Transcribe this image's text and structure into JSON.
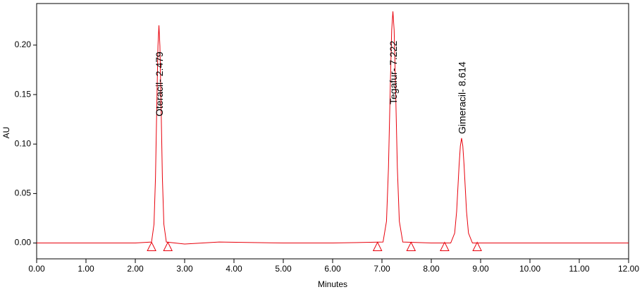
{
  "chart_data": {
    "type": "line",
    "x_label": "Minutes",
    "y_label": "AU",
    "x": [
      0,
      1,
      2,
      2.329,
      2.379,
      2.409,
      2.439,
      2.459,
      2.479,
      2.499,
      2.519,
      2.549,
      2.579,
      2.629,
      3,
      3.7,
      5,
      6,
      7.022,
      7.092,
      7.132,
      7.172,
      7.197,
      7.222,
      7.247,
      7.272,
      7.312,
      7.352,
      7.422,
      8,
      8.394,
      8.474,
      8.514,
      8.564,
      8.589,
      8.614,
      8.639,
      8.664,
      8.714,
      8.754,
      8.834,
      10,
      12
    ],
    "values": [
      0,
      0,
      0,
      0.001,
      0.019,
      0.066,
      0.148,
      0.199,
      0.22,
      0.199,
      0.148,
      0.066,
      0.019,
      0.001,
      -0.001,
      0.001,
      0,
      0,
      0.001,
      0.022,
      0.076,
      0.165,
      0.215,
      0.234,
      0.215,
      0.165,
      0.076,
      0.022,
      0.001,
      0,
      0,
      0.01,
      0.032,
      0.079,
      0.098,
      0.106,
      0.098,
      0.079,
      0.032,
      0.01,
      0,
      0,
      0
    ],
    "color": "#e8000b",
    "baseline_markers": [
      2.33,
      2.66,
      6.91,
      7.59,
      8.27,
      8.93
    ],
    "annotations": [
      {
        "text": "Oteracil- 2.479",
        "x": 2.479
      },
      {
        "text": "Tegafur- 7.222",
        "x": 7.222
      },
      {
        "text": "Gimeracil- 8.614",
        "x": 8.614
      }
    ],
    "xlim": [
      0,
      12
    ],
    "ylim": [
      -0.016,
      0.242
    ],
    "xticks": [
      {
        "value": 0,
        "label": "0.00"
      },
      {
        "value": 1,
        "label": "1.00"
      },
      {
        "value": 2,
        "label": "2.00"
      },
      {
        "value": 3,
        "label": "3.00"
      },
      {
        "value": 4,
        "label": "4.00"
      },
      {
        "value": 5,
        "label": "5.00"
      },
      {
        "value": 6,
        "label": "6.00"
      },
      {
        "value": 7,
        "label": "7.00"
      },
      {
        "value": 8,
        "label": "8.00"
      },
      {
        "value": 9,
        "label": "9.00"
      },
      {
        "value": 10,
        "label": "10.00"
      },
      {
        "value": 11,
        "label": "11.00"
      },
      {
        "value": 12,
        "label": "12.00"
      }
    ],
    "yticks": [
      {
        "value": 0,
        "label": "0.00"
      },
      {
        "value": 0.05,
        "label": "0.05"
      },
      {
        "value": 0.1,
        "label": "0.10"
      },
      {
        "value": 0.15,
        "label": "0.15"
      },
      {
        "value": 0.2,
        "label": "0.20"
      }
    ]
  }
}
